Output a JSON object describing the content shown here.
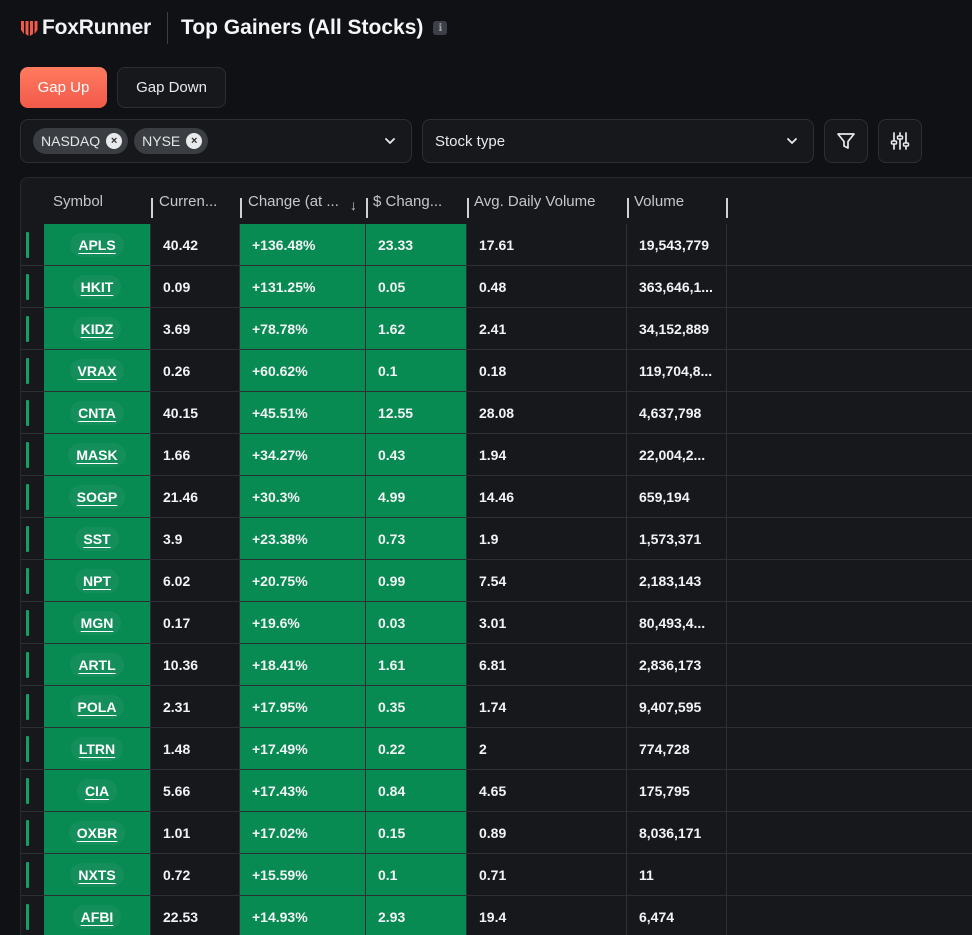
{
  "brand": {
    "name": "FoxRunner"
  },
  "page": {
    "title": "Top Gainers (All Stocks)"
  },
  "gap_tabs": {
    "up": "Gap Up",
    "down": "Gap Down"
  },
  "filters": {
    "exchanges": [
      "NASDAQ",
      "NYSE"
    ],
    "stock_type_placeholder": "Stock type"
  },
  "table": {
    "headers": [
      "Symbol",
      "Curren...",
      "Change (at ...",
      "$ Chang...",
      "Avg. Daily Volume",
      "Volume"
    ],
    "rows": [
      {
        "symbol": "APLS",
        "current": "40.42",
        "change": "+136.48%",
        "dollar": "23.33",
        "avg": "17.61",
        "volume": "19,543,779"
      },
      {
        "symbol": "HKIT",
        "current": "0.09",
        "change": "+131.25%",
        "dollar": "0.05",
        "avg": "0.48",
        "volume": "363,646,1..."
      },
      {
        "symbol": "KIDZ",
        "current": "3.69",
        "change": "+78.78%",
        "dollar": "1.62",
        "avg": "2.41",
        "volume": "34,152,889"
      },
      {
        "symbol": "VRAX",
        "current": "0.26",
        "change": "+60.62%",
        "dollar": "0.1",
        "avg": "0.18",
        "volume": "119,704,8..."
      },
      {
        "symbol": "CNTA",
        "current": "40.15",
        "change": "+45.51%",
        "dollar": "12.55",
        "avg": "28.08",
        "volume": "4,637,798"
      },
      {
        "symbol": "MASK",
        "current": "1.66",
        "change": "+34.27%",
        "dollar": "0.43",
        "avg": "1.94",
        "volume": "22,004,2..."
      },
      {
        "symbol": "SOGP",
        "current": "21.46",
        "change": "+30.3%",
        "dollar": "4.99",
        "avg": "14.46",
        "volume": "659,194"
      },
      {
        "symbol": "SST",
        "current": "3.9",
        "change": "+23.38%",
        "dollar": "0.73",
        "avg": "1.9",
        "volume": "1,573,371"
      },
      {
        "symbol": "NPT",
        "current": "6.02",
        "change": "+20.75%",
        "dollar": "0.99",
        "avg": "7.54",
        "volume": "2,183,143"
      },
      {
        "symbol": "MGN",
        "current": "0.17",
        "change": "+19.6%",
        "dollar": "0.03",
        "avg": "3.01",
        "volume": "80,493,4..."
      },
      {
        "symbol": "ARTL",
        "current": "10.36",
        "change": "+18.41%",
        "dollar": "1.61",
        "avg": "6.81",
        "volume": "2,836,173"
      },
      {
        "symbol": "POLA",
        "current": "2.31",
        "change": "+17.95%",
        "dollar": "0.35",
        "avg": "1.74",
        "volume": "9,407,595"
      },
      {
        "symbol": "LTRN",
        "current": "1.48",
        "change": "+17.49%",
        "dollar": "0.22",
        "avg": "2",
        "volume": "774,728"
      },
      {
        "symbol": "CIA",
        "current": "5.66",
        "change": "+17.43%",
        "dollar": "0.84",
        "avg": "4.65",
        "volume": "175,795"
      },
      {
        "symbol": "OXBR",
        "current": "1.01",
        "change": "+17.02%",
        "dollar": "0.15",
        "avg": "0.89",
        "volume": "8,036,171"
      },
      {
        "symbol": "NXTS",
        "current": "0.72",
        "change": "+15.59%",
        "dollar": "0.1",
        "avg": "0.71",
        "volume": "11"
      },
      {
        "symbol": "AFBI",
        "current": "22.53",
        "change": "+14.93%",
        "dollar": "2.93",
        "avg": "19.4",
        "volume": "6,474"
      }
    ]
  },
  "colors": {
    "accent": "#f2594a",
    "positive": "#088a53",
    "background": "#0f1114"
  },
  "icons": {
    "logo": "foxrunner-logo-icon",
    "info": "info-icon",
    "chip_remove": "close-circle-icon",
    "dropdown": "chevron-down-icon",
    "filter": "funnel-icon",
    "settings": "sliders-icon",
    "sort": "arrow-down-icon"
  }
}
